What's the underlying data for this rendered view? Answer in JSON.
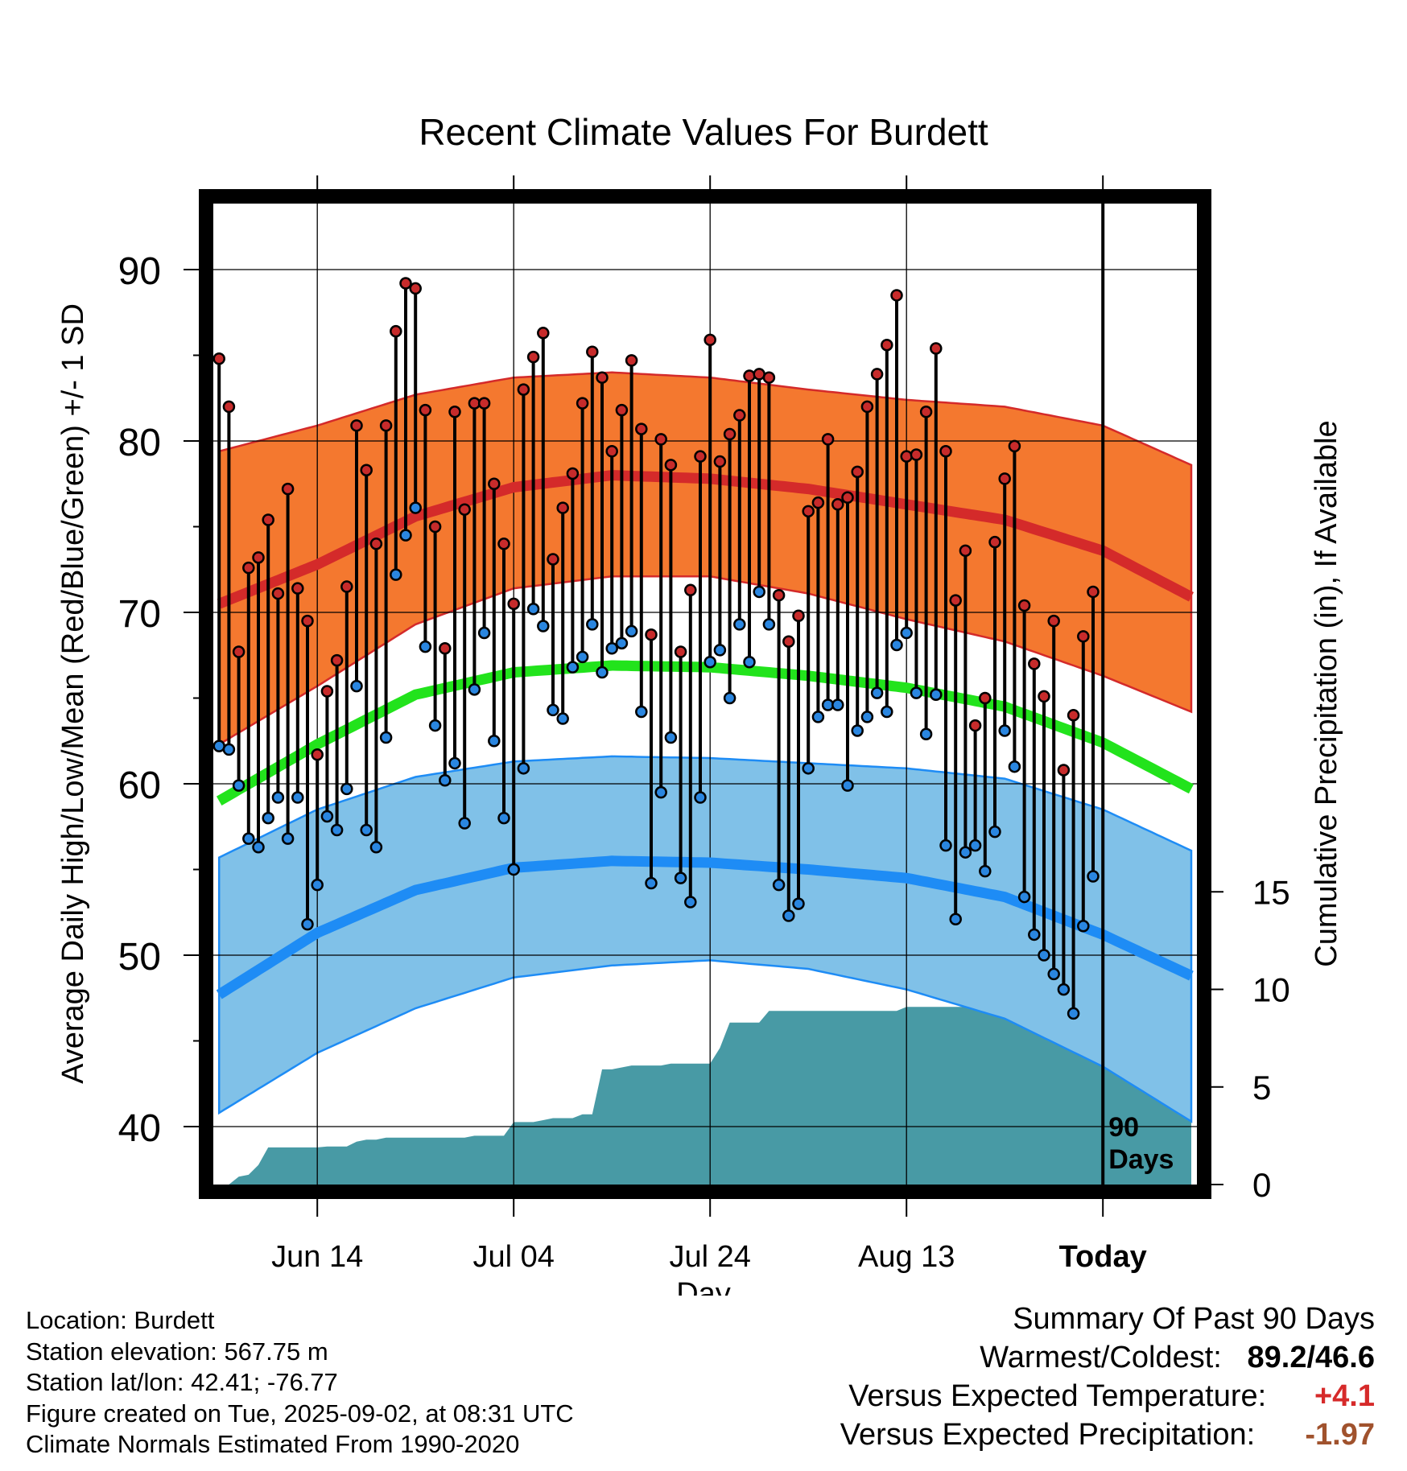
{
  "chart_data": {
    "type": "line",
    "title": "Recent Climate Values For Burdett",
    "xlabel": "Day",
    "ylabel": "Average Daily High/Low/Mean (Red/Blue/Green) +/- 1 SD",
    "y2label": "Cumulative Precipitation (in), If Available",
    "ylim": [
      36.5,
      94
    ],
    "y2lim": [
      0,
      22
    ],
    "y_ticks": [
      "40",
      "50",
      "60",
      "70",
      "80",
      "90"
    ],
    "y2_ticks": [
      "0",
      "5",
      "10",
      "15"
    ],
    "x_tick_labels": [
      {
        "day": 11,
        "label": "Jun 14"
      },
      {
        "day": 31,
        "label": "Jul 04"
      },
      {
        "day": 51,
        "label": "Jul 24"
      },
      {
        "day": 71,
        "label": "Aug 13"
      },
      {
        "day": 91,
        "label": "Today"
      }
    ],
    "xlim": [
      0.5,
      100.5
    ],
    "today_marker": {
      "day": 91,
      "label_line1": "90",
      "label_line2": "Days"
    },
    "grid": true,
    "normals": {
      "high_mean": {
        "days": [
          1,
          11,
          21,
          31,
          41,
          51,
          61,
          71,
          81,
          91,
          100
        ],
        "values": [
          70.5,
          72.8,
          75.6,
          77.3,
          78.0,
          77.8,
          77.2,
          76.3,
          75.4,
          73.6,
          70.9
        ]
      },
      "high_upper": {
        "days": [
          1,
          11,
          21,
          31,
          41,
          51,
          61,
          71,
          81,
          91,
          100
        ],
        "values": [
          79.4,
          80.9,
          82.7,
          83.7,
          84.0,
          83.7,
          83.0,
          82.4,
          82.0,
          80.9,
          78.6
        ]
      },
      "high_lower": {
        "days": [
          1,
          11,
          21,
          31,
          41,
          51,
          61,
          71,
          81,
          91,
          100
        ],
        "values": [
          62.3,
          65.7,
          69.3,
          71.4,
          72.1,
          72.1,
          71.1,
          69.6,
          68.3,
          66.3,
          64.2
        ]
      },
      "mean": {
        "days": [
          1,
          11,
          21,
          31,
          41,
          51,
          61,
          71,
          81,
          91,
          100
        ],
        "values": [
          59.0,
          62.3,
          65.2,
          66.5,
          66.9,
          66.8,
          66.3,
          65.6,
          64.5,
          62.4,
          59.7
        ]
      },
      "low_mean": {
        "days": [
          1,
          11,
          21,
          31,
          41,
          51,
          61,
          71,
          81,
          91,
          100
        ],
        "values": [
          47.7,
          51.3,
          53.8,
          55.1,
          55.5,
          55.4,
          55.0,
          54.5,
          53.4,
          51.2,
          48.8
        ]
      },
      "low_upper": {
        "days": [
          1,
          11,
          21,
          31,
          41,
          51,
          61,
          71,
          81,
          91,
          100
        ],
        "values": [
          55.7,
          58.5,
          60.4,
          61.3,
          61.6,
          61.5,
          61.2,
          60.9,
          60.3,
          58.5,
          56.1
        ]
      },
      "low_lower": {
        "days": [
          1,
          11,
          21,
          31,
          41,
          51,
          61,
          71,
          81,
          91,
          100
        ],
        "values": [
          40.8,
          44.3,
          46.9,
          48.7,
          49.4,
          49.7,
          49.2,
          48.0,
          46.3,
          43.5,
          40.3
        ]
      }
    },
    "daily_high": [
      84.8,
      82.0,
      67.7,
      72.6,
      73.2,
      75.4,
      71.1,
      77.2,
      71.4,
      69.5,
      61.7,
      65.4,
      67.2,
      71.5,
      80.9,
      78.3,
      74.0,
      80.9,
      86.4,
      89.2,
      88.9,
      81.8,
      75.0,
      67.9,
      81.7,
      76.0,
      82.2,
      82.2,
      77.5,
      74.0,
      70.5,
      83.0,
      84.9,
      86.3,
      73.1,
      76.1,
      78.1,
      82.2,
      85.2,
      83.7,
      79.4,
      81.8,
      84.7,
      80.7,
      68.7,
      80.1,
      78.6,
      67.7,
      71.3,
      79.1,
      85.9,
      78.8,
      80.4,
      81.5,
      83.8,
      83.9,
      83.7,
      71.0,
      68.3,
      69.8,
      75.9,
      76.4,
      80.1,
      76.3,
      76.7,
      78.2,
      82.0,
      83.9,
      85.6,
      88.5,
      79.1,
      79.2,
      81.7,
      85.4,
      79.4,
      70.7,
      73.6,
      63.4,
      65.0,
      74.1,
      77.8,
      79.7,
      70.4,
      67.0,
      65.1,
      69.5,
      60.8,
      64.0,
      68.6,
      71.2
    ],
    "daily_low": [
      62.2,
      62.0,
      59.9,
      56.8,
      56.3,
      58.0,
      59.2,
      56.8,
      59.2,
      51.8,
      54.1,
      58.1,
      57.3,
      59.7,
      65.7,
      57.3,
      56.3,
      62.7,
      72.2,
      74.5,
      76.1,
      68.0,
      63.4,
      60.2,
      61.2,
      57.7,
      65.5,
      68.8,
      62.5,
      58.0,
      55.0,
      60.9,
      70.2,
      69.2,
      64.3,
      63.8,
      66.8,
      67.4,
      69.3,
      66.5,
      67.9,
      68.2,
      68.9,
      64.2,
      54.2,
      59.5,
      62.7,
      54.5,
      53.1,
      59.2,
      67.1,
      67.8,
      65.0,
      69.3,
      67.1,
      71.2,
      69.3,
      54.1,
      52.3,
      53.0,
      60.9,
      63.9,
      64.6,
      64.6,
      59.9,
      63.1,
      63.9,
      65.3,
      64.2,
      68.1,
      68.8,
      65.3,
      62.9,
      65.2,
      56.4,
      52.1,
      56.0,
      56.4,
      54.9,
      57.2,
      63.1,
      61.0,
      53.4,
      51.2,
      50.0,
      48.9,
      48.0,
      46.6,
      51.7,
      54.6
    ],
    "precip_cumulative": {
      "days": [
        1,
        2,
        3,
        4,
        5,
        6,
        7,
        8,
        9,
        10,
        11,
        12,
        13,
        14,
        15,
        16,
        17,
        18,
        19,
        20,
        21,
        22,
        23,
        24,
        25,
        26,
        27,
        28,
        29,
        30,
        31,
        32,
        33,
        34,
        35,
        36,
        37,
        38,
        39,
        40,
        41,
        42,
        43,
        44,
        45,
        46,
        47,
        48,
        49,
        50,
        51,
        52,
        53,
        54,
        55,
        56,
        57,
        58,
        59,
        60,
        61,
        62,
        63,
        64,
        65,
        66,
        67,
        68,
        69,
        70,
        71,
        72,
        73,
        74,
        75,
        76,
        77,
        78,
        79,
        80,
        81,
        82,
        83,
        84,
        85,
        86,
        87,
        88,
        89,
        90,
        91,
        92,
        93,
        94,
        95,
        96,
        97,
        98,
        99,
        100
      ],
      "values": [
        0,
        0,
        0.4,
        0.5,
        1.0,
        1.9,
        1.9,
        1.9,
        1.9,
        1.9,
        1.9,
        1.95,
        1.95,
        1.95,
        2.2,
        2.3,
        2.3,
        2.4,
        2.4,
        2.4,
        2.4,
        2.4,
        2.4,
        2.4,
        2.4,
        2.4,
        2.5,
        2.5,
        2.5,
        2.5,
        3.2,
        3.2,
        3.2,
        3.3,
        3.4,
        3.4,
        3.4,
        3.6,
        3.6,
        5.9,
        5.9,
        6.0,
        6.1,
        6.1,
        6.1,
        6.1,
        6.2,
        6.2,
        6.2,
        6.2,
        6.2,
        7.0,
        8.3,
        8.3,
        8.3,
        8.3,
        8.9,
        8.9,
        8.9,
        8.9,
        8.9,
        8.9,
        8.9,
        8.9,
        8.9,
        8.9,
        8.9,
        8.9,
        8.9,
        8.9,
        9.1,
        9.1,
        9.1,
        9.1,
        9.1,
        9.1,
        9.1,
        9.1,
        9.9,
        9.9,
        9.9,
        9.9,
        11.1,
        11.1,
        11.1,
        11.1,
        11.1,
        11.1,
        11.1,
        11.1,
        11.1,
        11.1,
        11.1,
        11.1,
        11.1,
        11.1,
        11.1,
        11.1,
        11.1,
        11.1
      ]
    },
    "colors": {
      "high_band": "#f4782f",
      "high_line": "#d42a2a",
      "mean_line": "#22e31c",
      "low_band": "#80c1e8",
      "low_line": "#1e8cf5",
      "precip_fill": "#489aa5",
      "high_dot": "#c72b2b",
      "low_dot": "#2a86e0"
    }
  },
  "footer": {
    "location": "Location: Burdett",
    "elevation": "Station elevation: 567.75 m",
    "latlon": "Station lat/lon: 42.41; -76.77",
    "created": "Figure created on Tue, 2025-09-02, at 08:31 UTC",
    "normals": "Climate Normals Estimated From 1990-2020"
  },
  "summary": {
    "title": "Summary Of Past 90 Days",
    "warm_cold_label": "Warmest/Coldest:",
    "warm_cold_value": "89.2/46.6",
    "temp_label": "Versus Expected Temperature:",
    "temp_value": "+4.1",
    "temp_color": "#d62a2a",
    "precip_label": "Versus Expected Precipitation:",
    "precip_value": "-1.97",
    "precip_color": "#a0522d"
  }
}
